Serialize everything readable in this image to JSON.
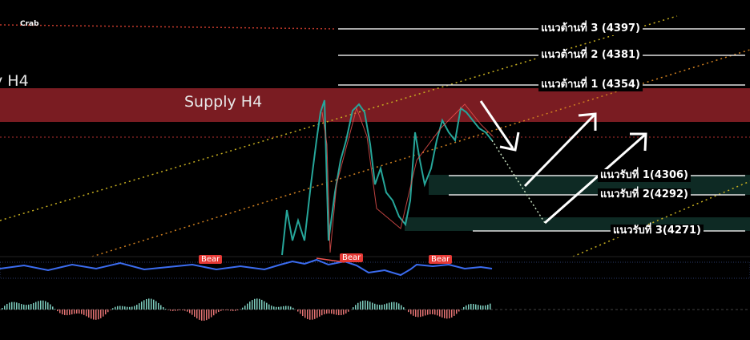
{
  "header": {
    "pattern": "Crab"
  },
  "zones": [
    {
      "label": "y H4"
    },
    {
      "label": "Supply H4"
    }
  ],
  "resistance": [
    "แนวต้านที่ 3 (4397)",
    "แนวต้านที่ 2 (4381)",
    "แนวต้านที่ 1 (4354)"
  ],
  "support": [
    "แนวรับที่ 1(4306)",
    "แนวรับที่ 2(4292)",
    "แนวรับที่ 3(4271)"
  ],
  "signals": [
    "Bear",
    "Bear",
    "Bear"
  ]
}
